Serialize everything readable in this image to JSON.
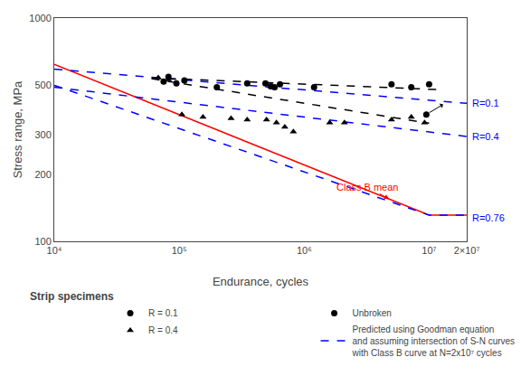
{
  "chart_data": {
    "type": "line",
    "xlabel": "Endurance, cycles",
    "ylabel": "Stress range, MPa",
    "log": true,
    "grid": false,
    "legend": "bottom",
    "legend_title": "Strip specimens",
    "xlim": [
      10000,
      20000000
    ],
    "xticks": [
      {
        "value": 10000,
        "label": "10⁴"
      },
      {
        "value": 100000,
        "label": "10⁵"
      },
      {
        "value": 1000000,
        "label": "10⁶"
      },
      {
        "value": 10000000,
        "label": "10⁷"
      },
      {
        "value": 20000000,
        "label": "2×10⁷"
      }
    ],
    "ylim": [
      100,
      1000
    ],
    "yticks": [
      100,
      200,
      300,
      500,
      1000
    ],
    "series": [
      {
        "type": "line",
        "color": "#ff0000",
        "line_style": "solid",
        "x": [
          10000,
          10000000,
          20000000
        ],
        "values": [
          620,
          131,
          131
        ]
      },
      {
        "type": "line",
        "color": "#0000ff",
        "line_style": "dashed",
        "name": "Predicted using Goodman equation\nand assuming intersection of S-N curves\nwith Class B curve at N=2x10⁷ cycles",
        "x": [
          10000,
          20000000
        ],
        "values": [
          590,
          415
        ]
      },
      {
        "type": "line",
        "color": "#0000ff",
        "line_style": "dashed",
        "x": [
          10000,
          20000000
        ],
        "values": [
          490,
          295
        ]
      },
      {
        "type": "line",
        "color": "#0000ff",
        "line_style": "dashed",
        "x": [
          10000,
          10000000,
          20000000
        ],
        "values": [
          500,
          131,
          131
        ]
      },
      {
        "type": "line",
        "color": "#000000",
        "line_style": "dashed",
        "x": [
          60000,
          12000000
        ],
        "values": [
          540,
          478
        ]
      },
      {
        "type": "line",
        "color": "#000000",
        "line_style": "dashed",
        "x": [
          60000,
          10000000
        ],
        "values": [
          535,
          338
        ]
      },
      {
        "type": "scatter",
        "color": "#000000",
        "marker": "circle",
        "name": "R = 0.1",
        "x": [
          75000,
          82000,
          95000,
          110000,
          200000,
          350000,
          490000,
          540000,
          580000,
          640000,
          1200000,
          5000000,
          7200000,
          10000000
        ],
        "values": [
          520,
          545,
          510,
          525,
          490,
          510,
          510,
          495,
          490,
          505,
          490,
          505,
          490,
          505
        ]
      },
      {
        "type": "scatter",
        "color": "#000000",
        "marker": "circle-arrow",
        "name": "Unbroken",
        "x": [
          9500000
        ],
        "values": [
          370
        ]
      },
      {
        "type": "scatter",
        "color": "#000000",
        "marker": "triangle",
        "name": "R = 0.4",
        "x": [
          68000,
          82000,
          105000,
          155000,
          260000,
          350000,
          500000,
          600000,
          700000,
          820000,
          1600000,
          2100000,
          5000000,
          7200000,
          9200000
        ],
        "values": [
          540,
          530,
          370,
          360,
          355,
          350,
          350,
          340,
          325,
          310,
          340,
          340,
          350,
          360,
          340
        ]
      }
    ],
    "annotations": [
      {
        "text": "R=0.1",
        "y": 415,
        "color": "#0000ff"
      },
      {
        "text": "R=0.4",
        "y": 295,
        "color": "#0000ff"
      },
      {
        "text": "R=0.76",
        "y": 128,
        "color": "#0000ff"
      },
      {
        "text": "Class B mean",
        "x": 3200000,
        "y": 175,
        "arrow_x": 4800000,
        "arrow_y": 154.5,
        "color": "#ff0000"
      }
    ]
  }
}
